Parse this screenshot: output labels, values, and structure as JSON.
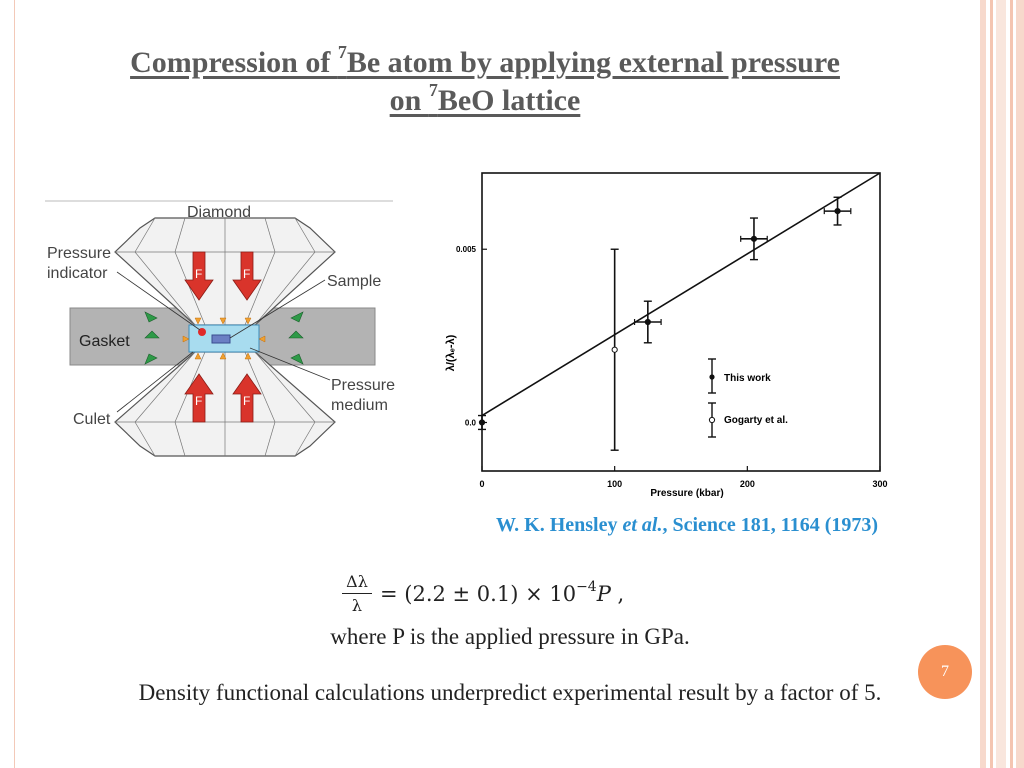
{
  "slide": {
    "title_line1_pre": "Compression of ",
    "title_line1_sup": "7",
    "title_line1_post": "Be atom by applying external pressure",
    "title_line2_pre": "on ",
    "title_line2_sup": "7",
    "title_line2_post": "BeO lattice",
    "page_number": "7"
  },
  "diagram": {
    "labels": {
      "diamond": "Diamond",
      "pressure_indicator_1": "Pressure",
      "pressure_indicator_2": "indicator",
      "sample": "Sample",
      "gasket": "Gasket",
      "pressure_medium_1": "Pressure",
      "pressure_medium_2": "medium",
      "culet": "Culet",
      "force": "F"
    },
    "colors": {
      "diamond_fill": "#f2f2f2",
      "gasket": "#b3b3b3",
      "arrow_red": "#d9342b",
      "arrow_green": "#2e9a48",
      "chamber": "#a8dcef"
    }
  },
  "chart_data": {
    "type": "scatter",
    "xlabel": "Pressure (kbar)",
    "ylabel": "λ/(λₑ-λ)",
    "xlim": [
      0,
      300
    ],
    "ylim": [
      -0.0014,
      0.0072
    ],
    "x_ticks": [
      "0",
      "100",
      "200",
      "300"
    ],
    "x_tick_values": [
      0,
      100,
      200,
      300
    ],
    "y_ticks": [
      "0.0",
      "0.005"
    ],
    "y_tick_values": [
      0.0,
      0.005
    ],
    "series": [
      {
        "name": "This work",
        "marker": "filled",
        "points": [
          {
            "x": 0,
            "y": 0.0,
            "yerr": 0.0002,
            "xerr": 0
          },
          {
            "x": 125,
            "y": 0.0029,
            "yerr": 0.0006,
            "xerr": 10
          },
          {
            "x": 205,
            "y": 0.0053,
            "yerr": 0.0006,
            "xerr": 10
          },
          {
            "x": 268,
            "y": 0.0061,
            "yerr": 0.0004,
            "xerr": 10
          }
        ]
      },
      {
        "name": "Gogarty et al.",
        "marker": "open",
        "points": [
          {
            "x": 100,
            "y": 0.0021,
            "yerr": 0.0029,
            "xerr": 0
          }
        ]
      }
    ],
    "fit_line": {
      "x": [
        0,
        300
      ],
      "y": [
        0.0002,
        0.0072
      ]
    }
  },
  "citation": {
    "author": "W. K. Hensley ",
    "etal": "et al.",
    "rest": ", Science 181, 1164 (1973)"
  },
  "formula": {
    "numerator": "Δλ",
    "denominator": "λ",
    "rhs": "= (2.2 ± 0.1) × 10",
    "exponent": "−4",
    "variable": "P",
    "trail": " ,"
  },
  "text": {
    "where": "where P is the applied pressure in GPa.",
    "density": "Density functional calculations underpredict experimental result by a factor of 5."
  }
}
